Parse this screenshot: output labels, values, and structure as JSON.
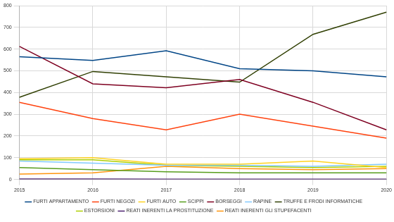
{
  "chart_data": {
    "type": "line",
    "categories": [
      "2015",
      "2016",
      "2017",
      "2018",
      "2019",
      "2020"
    ],
    "series": [
      {
        "name": "FURTI APPARTAMENTO",
        "color": "#004586",
        "values": [
          565,
          548,
          592,
          510,
          500,
          472
        ]
      },
      {
        "name": "FURTI NEGOZI",
        "color": "#ff420e",
        "values": [
          355,
          280,
          228,
          300,
          245,
          190
        ]
      },
      {
        "name": "FURTI AUTO",
        "color": "#ffd320",
        "values": [
          95,
          100,
          70,
          70,
          85,
          55
        ]
      },
      {
        "name": "SCIPPI",
        "color": "#579d1c",
        "values": [
          55,
          45,
          35,
          30,
          30,
          30
        ]
      },
      {
        "name": "BORSEGGI",
        "color": "#7e0021",
        "values": [
          612,
          440,
          422,
          460,
          355,
          228
        ]
      },
      {
        "name": "RAPINE",
        "color": "#83caff",
        "values": [
          85,
          75,
          65,
          65,
          60,
          70
        ]
      },
      {
        "name": "TRUFFE E FRODI INFORMATICHE",
        "color": "#314004",
        "values": [
          378,
          497,
          472,
          448,
          668,
          770
        ]
      },
      {
        "name": "ESTORSIONI",
        "color": "#aecf00",
        "values": [
          90,
          90,
          65,
          60,
          55,
          60
        ]
      },
      {
        "name": "REATI INERENTI LA PROSTITUZIONE",
        "color": "#4b1f6f",
        "values": [
          2,
          2,
          1,
          1,
          1,
          1
        ]
      },
      {
        "name": "REATI INERENTI GLI STUPEFACENTI",
        "color": "#ff950e",
        "values": [
          25,
          30,
          60,
          50,
          45,
          50
        ]
      }
    ],
    "ylim": [
      0,
      800
    ],
    "yticks": [
      0,
      100,
      200,
      300,
      400,
      500,
      600,
      700,
      800
    ],
    "grid": true,
    "legend": "bottom"
  }
}
